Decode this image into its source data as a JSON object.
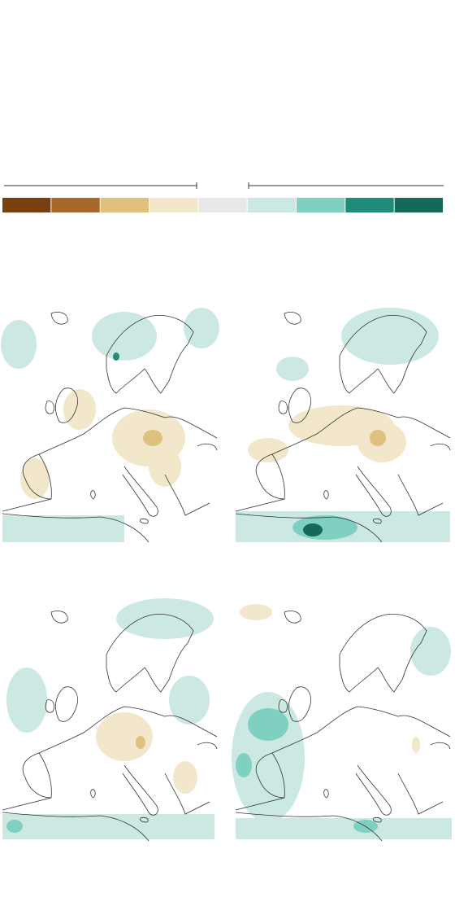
{
  "legend": {
    "colors": [
      "#7a3f0e",
      "#a8672a",
      "#dfc17f",
      "#f2e6cb",
      "#e8e8e8",
      "#cce8e3",
      "#80d0c2",
      "#1e8c78",
      "#14695a"
    ]
  }
}
